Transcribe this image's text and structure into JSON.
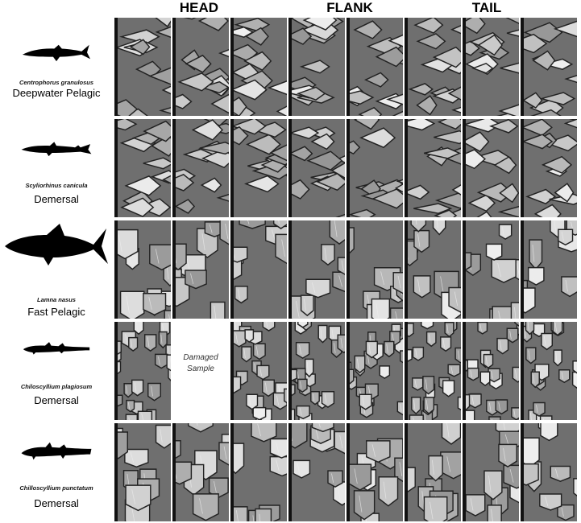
{
  "headers": {
    "head": "HEAD",
    "flank": "FLANK",
    "tail": "TAIL"
  },
  "rows": [
    {
      "scientific_name": "Centrophorus granulosus",
      "habitat": "Deepwater Pelagic"
    },
    {
      "scientific_name": "Scyliorhinus canicula",
      "habitat": "Demersal"
    },
    {
      "scientific_name": "Lamna nasus",
      "habitat": "Fast Pelagic"
    },
    {
      "scientific_name": "Chiloscyllium plagiosum",
      "habitat": "Demersal",
      "damaged_text": "Damaged Sample"
    },
    {
      "scientific_name": "Chilloscyllium punctatum",
      "habitat": "Demersal"
    }
  ],
  "columns_per_row": 8,
  "colors": {
    "text": "#000000",
    "tile_dark": "#1a1a1a",
    "tile_mid": "#8a8a8a",
    "tile_light": "#d9d9d9"
  }
}
